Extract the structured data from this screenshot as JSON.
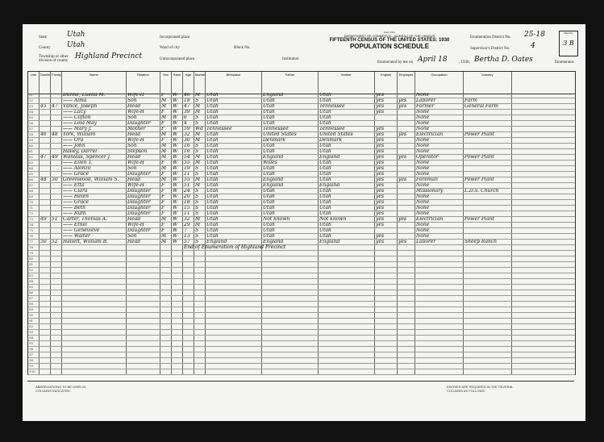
{
  "header": {
    "form": "Form 15-6",
    "department": "DEPARTMENT OF COMMERCE—BUREAU OF THE CENSUS",
    "census_title": "FIFTEENTH CENSUS OF THE UNITED STATES: 1930",
    "schedule": "POPULATION SCHEDULE",
    "state_label": "State",
    "state": "Utah",
    "county_label": "County",
    "county": "Utah",
    "township_label": "Township or other division of county",
    "township": "Highland Precinct",
    "incorporated_label": "Incorporated place",
    "ward_label": "Ward of city",
    "block_label": "Block No.",
    "unincorporated_label": "Unincorporated place",
    "institution_label": "Institution",
    "enum_district_label": "Enumeration District No.",
    "enum_district": "25-18",
    "supervisor_label": "Supervisor's District No.",
    "supervisor": "4",
    "sheet_label": "Sheet No.",
    "sheet": "3 B",
    "enumerated_label": "Enumerated by me on",
    "date": "April 18",
    "year": ", 1930,",
    "enumerator": "Bertha D. Oates",
    "enumerator_suffix": "Enumerator."
  },
  "columns": [
    "Line",
    "Dwelling",
    "Family",
    "Name",
    "Relation",
    "Sex",
    "Race",
    "Age",
    "Marital",
    "Birthplace",
    "Father",
    "Mother",
    "English",
    "Employed",
    "Occupation",
    "Industry"
  ],
  "rows": [
    [
      "51",
      "",
      "",
      "Dunne, Luella M.",
      "Wife-H",
      "F",
      "W",
      "46",
      "M",
      "Utah",
      "England",
      "Utah",
      "yes",
      "",
      "None",
      ""
    ],
    [
      "52",
      "",
      "",
      "—— Alma",
      "Son",
      "M",
      "W",
      "18",
      "S",
      "Utah",
      "Utah",
      "Utah",
      "yes",
      "yes",
      "Laborer",
      "Farm"
    ],
    [
      "53",
      "45",
      "47",
      "Vance, Joseph",
      "Head",
      "M",
      "W",
      "47",
      "M",
      "Utah",
      "Utah",
      "Tennessee",
      "yes",
      "yes",
      "Farmer",
      "General Farm"
    ],
    [
      "54",
      "",
      "",
      "—— Lucy",
      "Wife-H",
      "F",
      "W",
      "39",
      "M",
      "Utah",
      "Utah",
      "Utah",
      "yes",
      "",
      "None",
      ""
    ],
    [
      "55",
      "",
      "",
      "—— Clifton",
      "Son",
      "M",
      "W",
      "6",
      "S",
      "Utah",
      "Utah",
      "Utah",
      "",
      "",
      "None",
      ""
    ],
    [
      "56",
      "",
      "",
      "—— Lola May",
      "Daughter",
      "F",
      "W",
      "4",
      "S",
      "Utah",
      "Utah",
      "Utah",
      "",
      "",
      "None",
      ""
    ],
    [
      "57",
      "",
      "",
      "—— Mary J.",
      "Mother",
      "F",
      "W",
      "59",
      "Wd",
      "Tennessee",
      "Tennessee",
      "Tennessee",
      "yes",
      "",
      "None",
      ""
    ],
    [
      "58",
      "46",
      "48",
      "York, William",
      "Head",
      "M",
      "W",
      "32",
      "M",
      "Utah",
      "United States",
      "United States",
      "yes",
      "yes",
      "Electrician",
      "Power Plant"
    ],
    [
      "59",
      "",
      "",
      "—— Ora",
      "Wife-H",
      "F",
      "W",
      "30",
      "M",
      "Utah",
      "Denmark",
      "Denmark",
      "yes",
      "",
      "None",
      ""
    ],
    [
      "60",
      "",
      "",
      "—— John",
      "Son",
      "M",
      "W",
      "16",
      "S",
      "Utah",
      "Utah",
      "Utah",
      "yes",
      "",
      "None",
      ""
    ],
    [
      "61",
      "",
      "",
      "Halley, Darrel",
      "Stepson",
      "M",
      "W",
      "16",
      "S",
      "Utah",
      "Utah",
      "Utah",
      "yes",
      "",
      "None",
      ""
    ],
    [
      "62",
      "47",
      "49",
      "Wanlass, Spencer J.",
      "Head",
      "M",
      "W",
      "54",
      "M",
      "Utah",
      "England",
      "England",
      "yes",
      "yes",
      "Operator",
      "Power Plant"
    ],
    [
      "63",
      "",
      "",
      "—— Ellen T.",
      "Wife-H",
      "F",
      "W",
      "55",
      "M",
      "Utah",
      "Wales",
      "Utah",
      "yes",
      "",
      "None",
      ""
    ],
    [
      "64",
      "",
      "",
      "—— Alonzo",
      "Son",
      "M",
      "W",
      "19",
      "S",
      "Utah",
      "Utah",
      "Utah",
      "yes",
      "",
      "None",
      ""
    ],
    [
      "65",
      "",
      "",
      "—— Grace",
      "Daughter",
      "F",
      "W",
      "11",
      "S",
      "Utah",
      "Utah",
      "Utah",
      "yes",
      "",
      "None",
      ""
    ],
    [
      "66",
      "48",
      "50",
      "Greenwood, William S.",
      "Head",
      "M",
      "W",
      "55",
      "M",
      "Utah",
      "England",
      "Utah",
      "yes",
      "yes",
      "Foreman",
      "Power Plant"
    ],
    [
      "67",
      "",
      "",
      "—— Etta",
      "Wife-H",
      "F",
      "W",
      "51",
      "M",
      "Utah",
      "England",
      "England",
      "yes",
      "",
      "None",
      ""
    ],
    [
      "68",
      "",
      "",
      "—— Clara",
      "Daughter",
      "F",
      "W",
      "24",
      "S",
      "Utah",
      "Utah",
      "Utah",
      "yes",
      "",
      "Missionary",
      "L.D.S. Church"
    ],
    [
      "69",
      "",
      "",
      "—— Helen",
      "Daughter",
      "F",
      "W",
      "20",
      "S",
      "Utah",
      "Utah",
      "Utah",
      "yes",
      "",
      "None",
      ""
    ],
    [
      "70",
      "",
      "",
      "—— Grace",
      "Daughter",
      "F",
      "W",
      "18",
      "S",
      "Utah",
      "Utah",
      "Utah",
      "yes",
      "",
      "None",
      ""
    ],
    [
      "71",
      "",
      "",
      "—— Beth",
      "Daughter",
      "F",
      "W",
      "15",
      "S",
      "Utah",
      "Utah",
      "Utah",
      "yes",
      "",
      "None",
      ""
    ],
    [
      "72",
      "",
      "",
      "—— Ruth",
      "Daughter",
      "F",
      "W",
      "11",
      "S",
      "Utah",
      "Utah",
      "Utah",
      "yes",
      "",
      "None",
      ""
    ],
    [
      "73",
      "49",
      "51",
      "Carter, Thomas A.",
      "Head",
      "M",
      "W",
      "32",
      "M",
      "Utah",
      "Not known",
      "Not known",
      "yes",
      "yes",
      "Electrician",
      "Power Plant"
    ],
    [
      "74",
      "",
      "",
      "—— Ethel",
      "Wife-H",
      "F",
      "W",
      "29",
      "M",
      "Utah",
      "Utah",
      "Utah",
      "yes",
      "",
      "None",
      ""
    ],
    [
      "75",
      "",
      "",
      "—— Genevieve",
      "Daughter",
      "F",
      "W",
      "7",
      "S",
      "Utah",
      "Utah",
      "Utah",
      "",
      "",
      "None",
      ""
    ],
    [
      "76",
      "",
      "",
      "—— Walter",
      "Son",
      "M",
      "W",
      "13",
      "S",
      "Utah",
      "Utah",
      "Utah",
      "yes",
      "",
      "None",
      ""
    ],
    [
      "77",
      "50",
      "52",
      "Hallett, William B.",
      "Head",
      "M",
      "W",
      "57",
      "S",
      "England",
      "England",
      "England",
      "yes",
      "yes",
      "Laborer",
      "Sheep Ranch"
    ],
    [
      "78",
      "",
      "",
      "",
      "",
      "",
      "",
      "",
      "",
      "",
      "",
      "",
      "",
      "",
      "",
      ""
    ]
  ],
  "end_note": "End of Enumeration of Highland Precinct",
  "blank_lines": [
    "79",
    "80",
    "81",
    "82",
    "83",
    "84",
    "85",
    "86",
    "87",
    "88",
    "89",
    "90",
    "91",
    "92",
    "93",
    "94",
    "95",
    "96",
    "97",
    "98",
    "99",
    "100"
  ],
  "footer": {
    "left": "ABBREVIATIONS TO BE USED IN COLUMNS INDICATED:",
    "right": "ENTRIES ARE REQUIRED IN THE SEVERAL COLUMNS AS FOLLOWS:"
  }
}
